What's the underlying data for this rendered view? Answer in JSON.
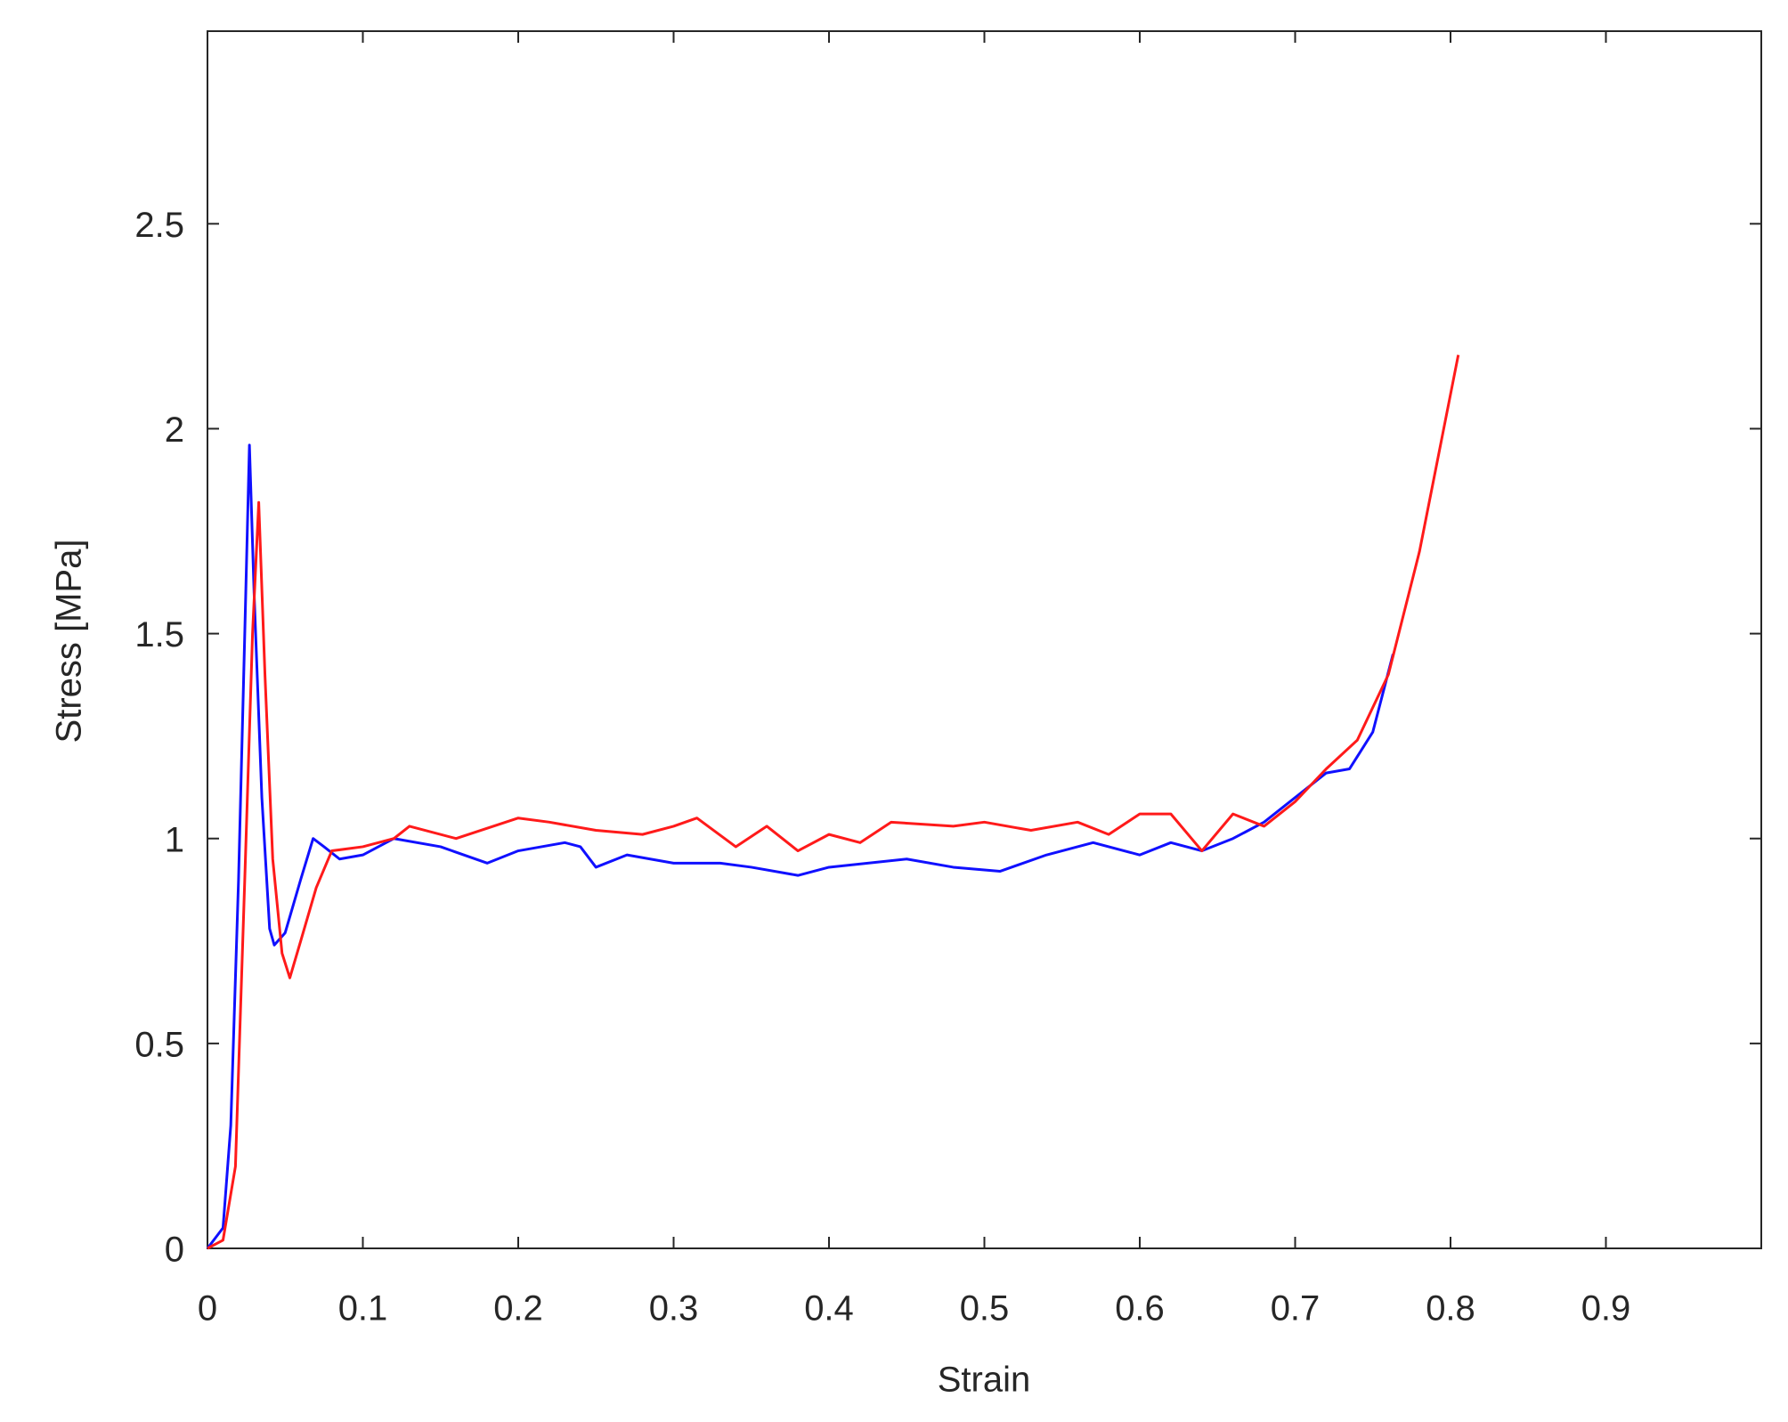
{
  "chart_data": {
    "type": "line",
    "x_label": "Strain",
    "y_label": "Stress [MPa]",
    "xlim": [
      0,
      1
    ],
    "ylim": [
      0,
      2.97
    ],
    "xticks": [
      0,
      0.1,
      0.2,
      0.3,
      0.4,
      0.5,
      0.6,
      0.7,
      0.8,
      0.9
    ],
    "yticks": [
      0,
      0.5,
      1,
      1.5,
      2,
      2.5
    ],
    "grid": false,
    "reference_line_color": "#ff3030",
    "series": [
      {
        "color": "#1010ff",
        "x": [
          0,
          0.01,
          0.015,
          0.02,
          0.024,
          0.027,
          0.03,
          0.035,
          0.04,
          0.043,
          0.05,
          0.06,
          0.068,
          0.075,
          0.085,
          0.1,
          0.12,
          0.15,
          0.18,
          0.2,
          0.23,
          0.24,
          0.25,
          0.27,
          0.3,
          0.33,
          0.35,
          0.38,
          0.4,
          0.45,
          0.48,
          0.51,
          0.54,
          0.57,
          0.6,
          0.62,
          0.64,
          0.66,
          0.68,
          0.7,
          0.72,
          0.735,
          0.75,
          0.763
        ],
        "values": [
          0,
          0.05,
          0.3,
          0.9,
          1.5,
          1.96,
          1.6,
          1.1,
          0.78,
          0.74,
          0.77,
          0.9,
          1.0,
          0.98,
          0.95,
          0.96,
          1.0,
          0.98,
          0.94,
          0.97,
          0.99,
          0.98,
          0.93,
          0.96,
          0.94,
          0.94,
          0.93,
          0.91,
          0.93,
          0.95,
          0.93,
          0.92,
          0.96,
          0.99,
          0.96,
          0.99,
          0.97,
          1.0,
          1.04,
          1.1,
          1.16,
          1.17,
          1.26,
          1.45
        ]
      },
      {
        "color": "#ff1a1a",
        "x": [
          0,
          0.01,
          0.018,
          0.024,
          0.029,
          0.033,
          0.037,
          0.042,
          0.048,
          0.053,
          0.06,
          0.07,
          0.08,
          0.1,
          0.12,
          0.13,
          0.16,
          0.2,
          0.22,
          0.25,
          0.28,
          0.3,
          0.315,
          0.34,
          0.36,
          0.38,
          0.4,
          0.42,
          0.44,
          0.48,
          0.5,
          0.53,
          0.56,
          0.58,
          0.6,
          0.62,
          0.64,
          0.66,
          0.68,
          0.7,
          0.72,
          0.74,
          0.76,
          0.78,
          0.805
        ],
        "values": [
          0,
          0.02,
          0.2,
          0.9,
          1.5,
          1.82,
          1.4,
          0.95,
          0.72,
          0.66,
          0.75,
          0.88,
          0.97,
          0.98,
          1.0,
          1.03,
          1.0,
          1.05,
          1.04,
          1.02,
          1.01,
          1.03,
          1.05,
          0.98,
          1.03,
          0.97,
          1.01,
          0.99,
          1.04,
          1.03,
          1.04,
          1.02,
          1.04,
          1.01,
          1.06,
          1.06,
          0.97,
          1.06,
          1.03,
          1.09,
          1.17,
          1.24,
          1.4,
          1.7,
          2.18
        ]
      }
    ]
  }
}
